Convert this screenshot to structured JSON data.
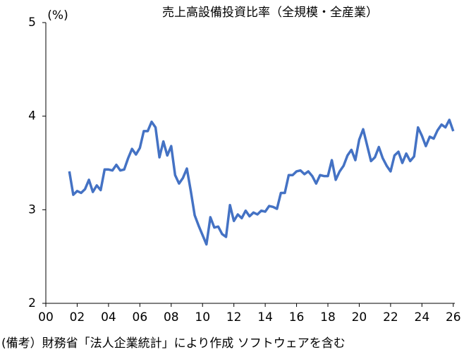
{
  "chart_data": {
    "type": "line",
    "title": "売上高設備投資比率（全規模・全産業）",
    "y_unit": "(%)",
    "note": "(備考）財務省「法人企業統計」により作成 ソフトウェアを含む",
    "x": [
      1.5,
      1.75,
      2,
      2.25,
      2.5,
      2.75,
      3,
      3.25,
      3.5,
      3.75,
      4,
      4.25,
      4.5,
      4.75,
      5,
      5.25,
      5.5,
      5.75,
      6,
      6.25,
      6.5,
      6.75,
      7,
      7.25,
      7.5,
      7.75,
      8,
      8.25,
      8.5,
      8.75,
      9,
      9.25,
      9.5,
      9.75,
      10,
      10.25,
      10.5,
      10.75,
      11,
      11.25,
      11.5,
      11.75,
      12,
      12.25,
      12.5,
      12.75,
      13,
      13.25,
      13.5,
      13.75,
      14,
      14.25,
      14.5,
      14.75,
      15,
      15.25,
      15.5,
      15.75,
      16,
      16.25,
      16.5,
      16.75,
      17,
      17.25,
      17.5,
      17.75,
      18,
      18.25,
      18.5,
      18.75,
      19,
      19.25,
      19.5,
      19.75,
      20,
      20.25,
      20.5,
      20.75,
      21,
      21.25,
      21.5,
      21.75,
      22,
      22.25,
      22.5,
      22.75,
      23,
      23.25,
      23.5,
      23.75,
      24,
      24.25,
      24.5,
      24.75,
      25,
      25.25,
      25.5,
      25.75,
      26
    ],
    "series": [
      {
        "color": "#4472c4",
        "values": [
          3.41,
          3.16,
          3.2,
          3.18,
          3.22,
          3.32,
          3.19,
          3.26,
          3.21,
          3.43,
          3.43,
          3.42,
          3.48,
          3.42,
          3.43,
          3.55,
          3.65,
          3.59,
          3.66,
          3.84,
          3.84,
          3.94,
          3.88,
          3.56,
          3.73,
          3.58,
          3.68,
          3.37,
          3.28,
          3.34,
          3.44,
          3.2,
          2.94,
          2.83,
          2.73,
          2.63,
          2.92,
          2.81,
          2.82,
          2.74,
          2.71,
          3.05,
          2.88,
          2.95,
          2.91,
          2.99,
          2.93,
          2.97,
          2.95,
          2.99,
          2.98,
          3.04,
          3.03,
          3.01,
          3.18,
          3.18,
          3.37,
          3.37,
          3.41,
          3.42,
          3.38,
          3.41,
          3.36,
          3.28,
          3.37,
          3.36,
          3.36,
          3.53,
          3.32,
          3.41,
          3.47,
          3.58,
          3.64,
          3.53,
          3.75,
          3.86,
          3.69,
          3.52,
          3.56,
          3.67,
          3.55,
          3.47,
          3.41,
          3.58,
          3.62,
          3.5,
          3.6,
          3.52,
          3.57,
          3.88,
          3.79,
          3.68,
          3.78,
          3.76,
          3.85,
          3.91,
          3.88,
          3.96,
          3.84
        ]
      }
    ],
    "xlim": [
      0,
      26.1
    ],
    "xticks": [
      {
        "value": 0,
        "label": "00"
      },
      {
        "value": 2,
        "label": "02"
      },
      {
        "value": 4,
        "label": "04"
      },
      {
        "value": 6,
        "label": "06"
      },
      {
        "value": 8,
        "label": "08"
      },
      10,
      12,
      14,
      16,
      18,
      20,
      22,
      24,
      26
    ],
    "ylim": [
      2,
      5
    ],
    "yticks": [
      2,
      3,
      4,
      5
    ]
  }
}
